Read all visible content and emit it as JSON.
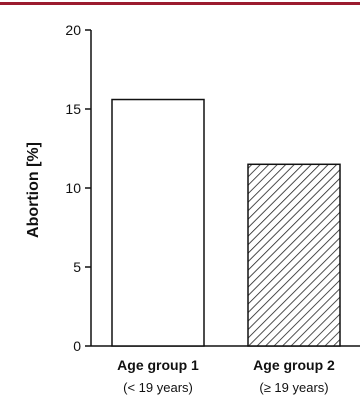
{
  "accent_color": "#9b1b2e",
  "chart_data": {
    "type": "bar",
    "title": "",
    "xlabel": "",
    "ylabel": "Abortion [%]",
    "ylim": [
      0,
      20
    ],
    "yticks": [
      0,
      5,
      10,
      15,
      20
    ],
    "grid": false,
    "categories": [
      {
        "label": "Age group 1",
        "sublabel": "(< 19 years)"
      },
      {
        "label": "Age group 2",
        "sublabel": "(≥ 19 years)"
      }
    ],
    "values": [
      15.6,
      11.5
    ],
    "bar_styles": [
      "plain",
      "hatched"
    ]
  }
}
